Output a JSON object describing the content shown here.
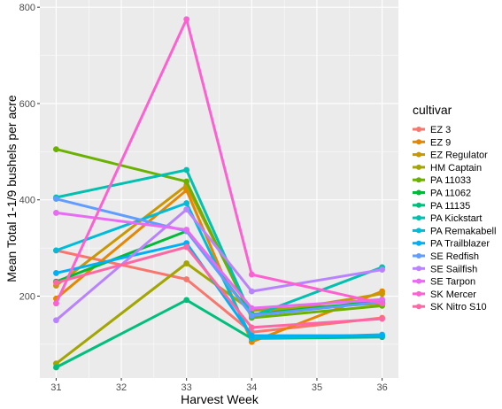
{
  "chart_data": {
    "type": "line",
    "xlabel": "Harvest Week",
    "ylabel": "Mean Total 1-1/9 bushels per acre",
    "x": [
      31,
      33,
      34,
      36
    ],
    "xlim": [
      30.75,
      36.25
    ],
    "ylim": [
      30,
      815
    ],
    "x_ticks": [
      31,
      32,
      33,
      34,
      35,
      36
    ],
    "y_ticks": [
      200,
      400,
      600,
      800
    ],
    "grid": true,
    "legend_title": "cultivar",
    "legend_position": "right",
    "series": [
      {
        "name": "EZ 3",
        "color": "#F8766D",
        "values": [
          295,
          235,
          125,
          155
        ]
      },
      {
        "name": "EZ 9",
        "color": "#E58700",
        "values": [
          195,
          420,
          105,
          210
        ]
      },
      {
        "name": "EZ Regulator",
        "color": "#C99800",
        "values": [
          222,
          430,
          160,
          205
        ]
      },
      {
        "name": "HM Captain",
        "color": "#A3A500",
        "values": [
          60,
          268,
          170,
          185
        ]
      },
      {
        "name": "PA 11033",
        "color": "#6BB100",
        "values": [
          505,
          438,
          155,
          180
        ]
      },
      {
        "name": "PA 11062",
        "color": "#00BA38",
        "values": [
          230,
          335,
          162,
          190
        ]
      },
      {
        "name": "PA 11135",
        "color": "#00BF7D",
        "values": [
          52,
          192,
          112,
          115
        ]
      },
      {
        "name": "PA Kickstart",
        "color": "#00C0AF",
        "values": [
          405,
          462,
          158,
          260
        ]
      },
      {
        "name": "PA Remakabell",
        "color": "#00BCD8",
        "values": [
          295,
          393,
          112,
          120
        ]
      },
      {
        "name": "PA Trailblazer",
        "color": "#00B0F6",
        "values": [
          248,
          310,
          118,
          118
        ]
      },
      {
        "name": "SE Redfish",
        "color": "#619CFF",
        "values": [
          402,
          335,
          160,
          188
        ]
      },
      {
        "name": "SE Sailfish",
        "color": "#B983FF",
        "values": [
          150,
          380,
          210,
          255
        ]
      },
      {
        "name": "SE Tarpon",
        "color": "#E76BF3",
        "values": [
          373,
          338,
          175,
          193
        ]
      },
      {
        "name": "SK Mercer",
        "color": "#FD61D1",
        "values": [
          185,
          775,
          245,
          185
        ]
      },
      {
        "name": "SK Nitro S10",
        "color": "#FF67A4",
        "values": [
          228,
          302,
          135,
          153
        ]
      }
    ]
  }
}
